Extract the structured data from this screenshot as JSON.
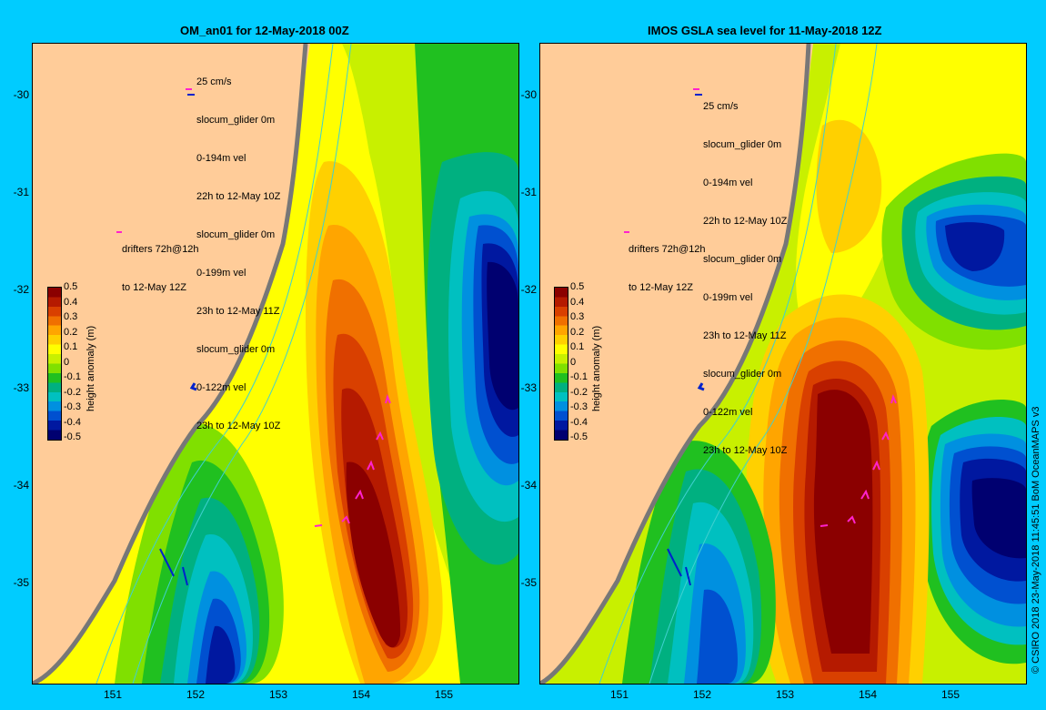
{
  "left_panel": {
    "title": "OM_an01 for 12-May-2018 00Z",
    "legend": [
      "25 cm/s",
      "slocum_glider 0m",
      "0-194m vel",
      "22h to 12-May 10Z",
      "slocum_glider 0m",
      "0-199m vel",
      "23h to 12-May 11Z",
      "slocum_glider 0m",
      "0-122m vel",
      "23h to 12-May 10Z"
    ],
    "drifters": [
      "drifters 72h@12h",
      "to 12-May 12Z"
    ]
  },
  "right_panel": {
    "title": "IMOS GSLA sea level  for 11-May-2018 12Z",
    "legend": [
      "25 cm/s",
      "slocum_glider 0m",
      "0-194m vel",
      "22h to 12-May 10Z",
      "slocum_glider 0m",
      "0-199m vel",
      "23h to 12-May 11Z",
      "slocum_glider 0m",
      "0-122m vel",
      "23h to 12-May 10Z"
    ],
    "drifters": [
      "drifters 72h@12h",
      "to 12-May 12Z"
    ]
  },
  "axes": {
    "lat_ticks": [
      "-30",
      "-31",
      "-32",
      "-33",
      "-34",
      "-35"
    ],
    "lon_ticks": [
      "151",
      "152",
      "153",
      "154",
      "155"
    ]
  },
  "colorbar": {
    "label": "height anomaly (m)",
    "ticks": [
      "0.5",
      "0.4",
      "0.3",
      "0.2",
      "0.1",
      "0",
      "-0.1",
      "-0.2",
      "-0.3",
      "-0.4",
      "-0.5"
    ],
    "colors": [
      "#8b0000",
      "#b51a00",
      "#d94000",
      "#f07000",
      "#ffa500",
      "#ffd000",
      "#ffff00",
      "#c8f000",
      "#80e000",
      "#20c020",
      "#00b080",
      "#00c0c0",
      "#0090e0",
      "#0050d0",
      "#0018a0",
      "#000070"
    ]
  },
  "credit": "© CSIRO 2018   23-May-2018 11:45:51 BoM OceanMAPS v3"
}
